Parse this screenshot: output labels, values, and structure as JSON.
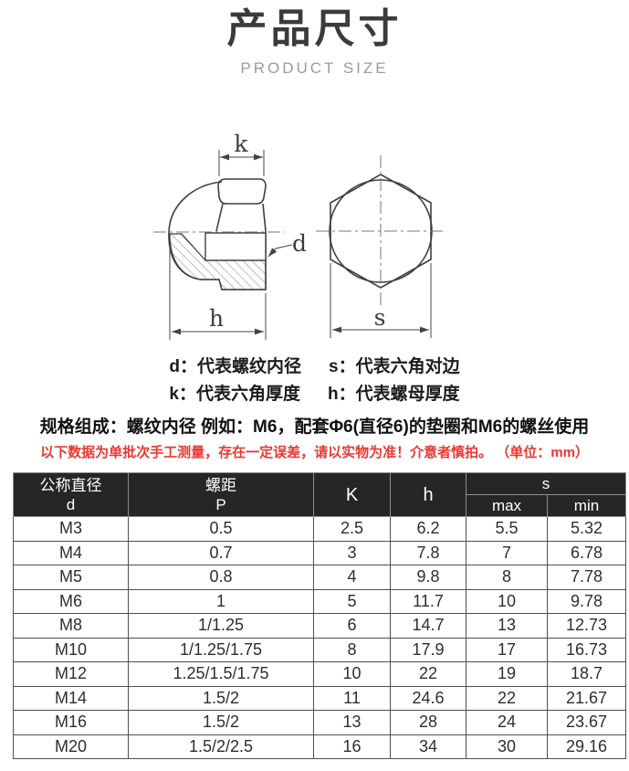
{
  "header": {
    "title": "产品尺寸",
    "subtitle": "PRODUCT SIZE"
  },
  "diagram": {
    "labels": {
      "k": "k",
      "d": "d",
      "h": "h",
      "s": "s"
    }
  },
  "legend": {
    "items": [
      "d：代表螺纹内径",
      "s：代表六角对边",
      "k：代表六角厚度",
      "h：代表螺母厚度"
    ]
  },
  "spec_note": "规格组成：螺纹内径 例如：M6，配套Φ6(直径6)的垫圈和M6的螺丝使用",
  "disclaimer": "以下数据为单批次手工测量，存在一定误差，请以实物为准！介意者慎拍。 （单位：mm）",
  "table": {
    "header": {
      "col1_line1": "公称直径",
      "col1_line2": "d",
      "col2_line1": "螺距",
      "col2_line2": "P",
      "col3": "K",
      "col4": "h",
      "col5": "s",
      "sub_max": "max",
      "sub_min": "min"
    },
    "rows": [
      [
        "M3",
        "0.5",
        "2.5",
        "6.2",
        "5.5",
        "5.32"
      ],
      [
        "M4",
        "0.7",
        "3",
        "7.8",
        "7",
        "6.78"
      ],
      [
        "M5",
        "0.8",
        "4",
        "9.8",
        "8",
        "7.78"
      ],
      [
        "M6",
        "1",
        "5",
        "11.7",
        "10",
        "9.78"
      ],
      [
        "M8",
        "1/1.25",
        "6",
        "14.7",
        "13",
        "12.73"
      ],
      [
        "M10",
        "1/1.25/1.75",
        "8",
        "17.9",
        "17",
        "16.73"
      ],
      [
        "M12",
        "1.25/1.5/1.75",
        "10",
        "22",
        "19",
        "18.7"
      ],
      [
        "M14",
        "1.5/2",
        "11",
        "24.6",
        "22",
        "21.67"
      ],
      [
        "M16",
        "1.5/2",
        "13",
        "28",
        "24",
        "23.67"
      ],
      [
        "M20",
        "1.5/2/2.5",
        "16",
        "34",
        "30",
        "29.16"
      ]
    ]
  },
  "colors": {
    "disclaimer_red": "#e8382f",
    "table_header_bg": "#262626",
    "title_gray": "#3b3b3b"
  }
}
